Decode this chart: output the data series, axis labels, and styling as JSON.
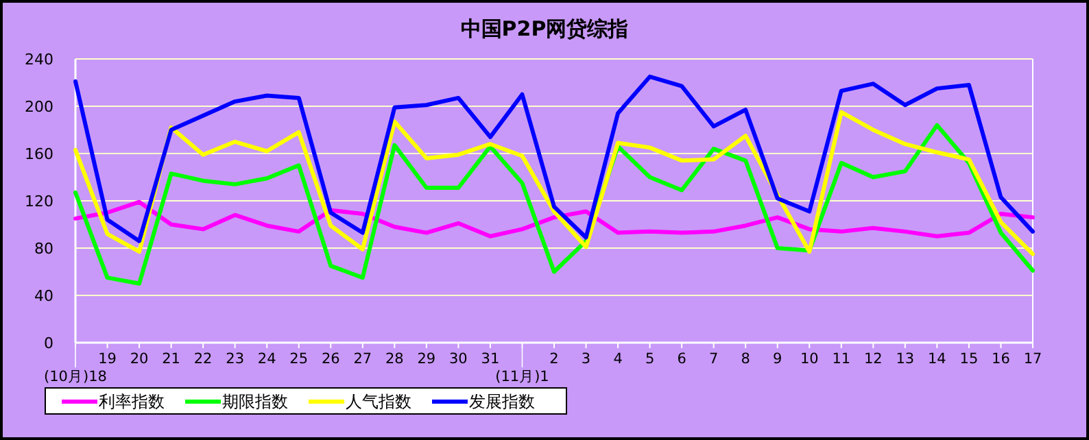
{
  "chart_data": {
    "type": "line",
    "title": "中国P2P网贷综指",
    "categories": [
      "(10月)18",
      "19",
      "20",
      "21",
      "22",
      "23",
      "24",
      "25",
      "26",
      "27",
      "28",
      "29",
      "30",
      "31",
      "(11月)1",
      "2",
      "3",
      "4",
      "5",
      "6",
      "7",
      "8",
      "9",
      "10",
      "11",
      "12",
      "13",
      "14",
      "15",
      "16",
      "17"
    ],
    "series": [
      {
        "name": "利率指数",
        "color": "#ff00ff",
        "values": [
          105,
          110,
          119,
          100,
          96,
          108,
          99,
          94,
          112,
          109,
          98,
          93,
          101,
          90,
          96,
          106,
          111,
          93,
          94,
          93,
          94,
          99,
          106,
          96,
          94,
          97,
          94,
          90,
          93,
          109,
          106
        ]
      },
      {
        "name": "期限指数",
        "color": "#00ff00",
        "values": [
          127,
          55,
          50,
          143,
          137,
          134,
          139,
          150,
          65,
          55,
          167,
          131,
          131,
          166,
          135,
          60,
          86,
          166,
          140,
          129,
          164,
          154,
          80,
          78,
          152,
          140,
          145,
          184,
          152,
          93,
          61
        ]
      },
      {
        "name": "人气指数",
        "color": "#ffff00",
        "values": [
          163,
          92,
          77,
          182,
          159,
          170,
          162,
          178,
          99,
          79,
          187,
          156,
          159,
          168,
          158,
          111,
          81,
          169,
          165,
          154,
          155,
          175,
          125,
          77,
          195,
          180,
          168,
          161,
          155,
          102,
          75
        ]
      },
      {
        "name": "发展指数",
        "color": "#0000ff",
        "values": [
          221,
          104,
          86,
          180,
          192,
          204,
          209,
          207,
          110,
          93,
          199,
          201,
          207,
          174,
          210,
          115,
          89,
          194,
          225,
          217,
          183,
          197,
          122,
          111,
          213,
          219,
          201,
          215,
          218,
          123,
          94
        ]
      }
    ],
    "ylim": [
      0,
      240
    ],
    "yticks": [
      0,
      40,
      80,
      120,
      160,
      200,
      240
    ],
    "grid": "y",
    "legend": "bottom",
    "line_style": "solid"
  }
}
